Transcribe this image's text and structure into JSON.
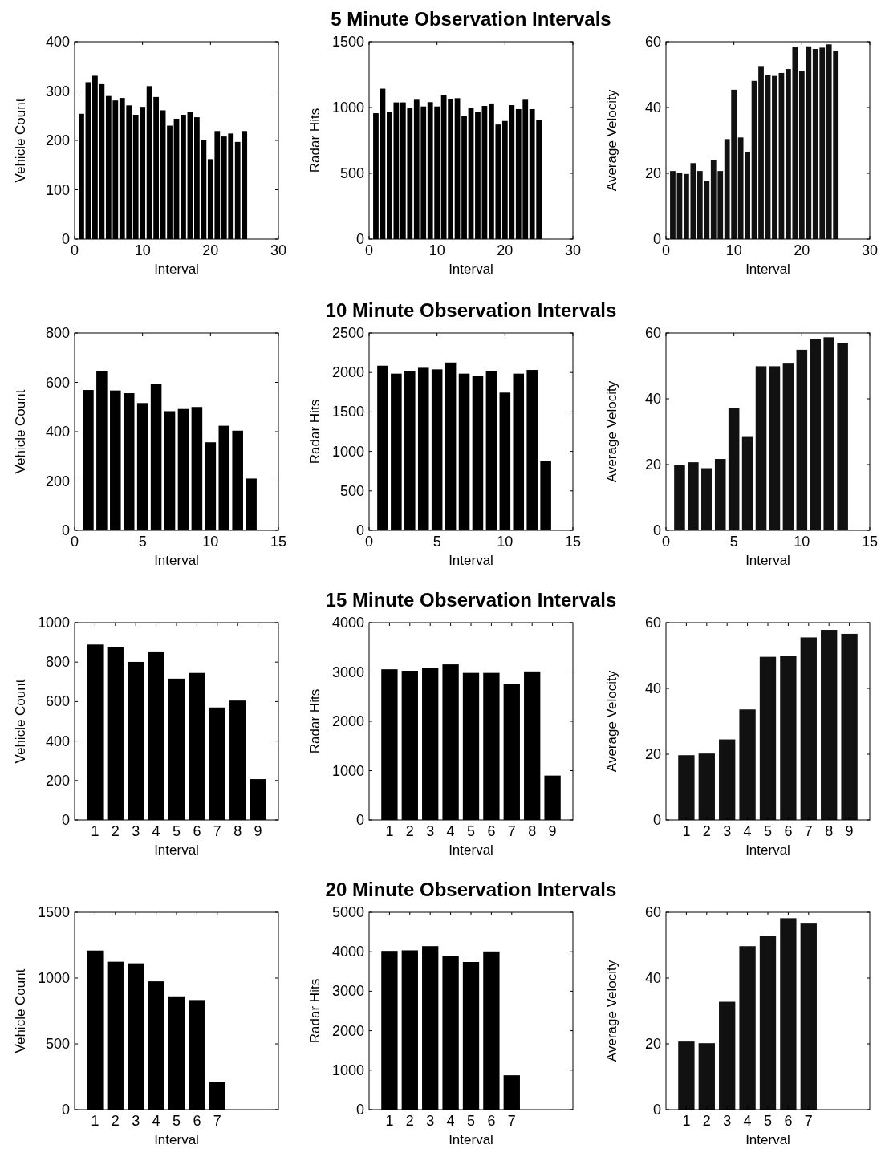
{
  "chart_data": [
    {
      "type": "bar",
      "xlabel": "Interval",
      "ylabel": "Vehicle Count",
      "x": [
        1,
        2,
        3,
        4,
        5,
        6,
        7,
        8,
        9,
        10,
        11,
        12,
        13,
        14,
        15,
        16,
        17,
        18,
        19,
        20,
        21,
        22,
        23,
        24,
        25
      ],
      "values": [
        254,
        318,
        331,
        314,
        290,
        281,
        286,
        271,
        252,
        268,
        310,
        288,
        261,
        230,
        244,
        252,
        257,
        247,
        200,
        162,
        219,
        208,
        214,
        197,
        219
      ],
      "color": "#000000",
      "xlim": [
        0,
        30
      ],
      "xticks": [
        0,
        10,
        20,
        30
      ],
      "ylim": [
        0,
        400
      ],
      "yticks": [
        0,
        100,
        200,
        300,
        400
      ]
    },
    {
      "type": "bar",
      "title": "5 Minute Observation Intervals",
      "xlabel": "Interval",
      "ylabel": "Radar Hits",
      "x": [
        1,
        2,
        3,
        4,
        5,
        6,
        7,
        8,
        9,
        10,
        11,
        12,
        13,
        14,
        15,
        16,
        17,
        18,
        19,
        20,
        21,
        22,
        23,
        24,
        25
      ],
      "values": [
        957,
        1143,
        967,
        1039,
        1039,
        1000,
        1059,
        1008,
        1041,
        1008,
        1096,
        1063,
        1071,
        937,
        1000,
        969,
        1012,
        1031,
        871,
        898,
        1018,
        988,
        1059,
        988,
        906
      ],
      "color": "#000000",
      "xlim": [
        0,
        30
      ],
      "xticks": [
        0,
        10,
        20,
        30
      ],
      "ylim": [
        0,
        1500
      ],
      "yticks": [
        0,
        500,
        1000,
        1500
      ]
    },
    {
      "type": "bar",
      "xlabel": "Interval",
      "ylabel": "Average Velocity",
      "x": [
        1,
        2,
        3,
        4,
        5,
        6,
        7,
        8,
        9,
        10,
        11,
        12,
        13,
        14,
        15,
        16,
        17,
        18,
        19,
        20,
        21,
        22,
        23,
        24,
        25
      ],
      "values": [
        20.7,
        20.2,
        19.8,
        23.1,
        20.7,
        17.7,
        24.1,
        20.7,
        30.4,
        45.4,
        30.9,
        26.6,
        48.1,
        52.6,
        50.0,
        49.6,
        50.5,
        51.7,
        58.5,
        51.2,
        58.6,
        57.8,
        58.2,
        59.2,
        57.1
      ],
      "color": "#111111",
      "xlim": [
        0,
        30
      ],
      "xticks": [
        0,
        10,
        20,
        30
      ],
      "ylim": [
        0,
        60
      ],
      "yticks": [
        0,
        20,
        40,
        60
      ]
    },
    {
      "type": "bar",
      "xlabel": "Interval",
      "ylabel": "Vehicle Count",
      "x": [
        1,
        2,
        3,
        4,
        5,
        6,
        7,
        8,
        9,
        10,
        11,
        12,
        13
      ],
      "values": [
        569,
        644,
        567,
        556,
        516,
        593,
        483,
        492,
        500,
        357,
        424,
        404,
        210
      ],
      "color": "#000000",
      "xlim": [
        0,
        15
      ],
      "xticks": [
        0,
        5,
        10,
        15
      ],
      "ylim": [
        0,
        800
      ],
      "yticks": [
        0,
        200,
        400,
        600,
        800
      ]
    },
    {
      "type": "bar",
      "title": "10 Minute Observation Intervals",
      "xlabel": "Interval",
      "ylabel": "Radar Hits",
      "x": [
        1,
        2,
        3,
        4,
        5,
        6,
        7,
        8,
        9,
        10,
        11,
        12,
        13
      ],
      "values": [
        2086,
        1985,
        2012,
        2059,
        2039,
        2126,
        1985,
        1952,
        2019,
        1745,
        1985,
        2032,
        876
      ],
      "color": "#000000",
      "xlim": [
        0,
        15
      ],
      "xticks": [
        0,
        5,
        10,
        15
      ],
      "ylim": [
        0,
        2500
      ],
      "yticks": [
        0,
        500,
        1000,
        1500,
        2000,
        2500
      ]
    },
    {
      "type": "bar",
      "xlabel": "Interval",
      "ylabel": "Average Velocity",
      "x": [
        1,
        2,
        3,
        4,
        5,
        6,
        7,
        8,
        9,
        10,
        11,
        12,
        13
      ],
      "values": [
        19.9,
        20.7,
        18.9,
        21.7,
        37.1,
        28.4,
        49.9,
        49.9,
        50.7,
        54.9,
        58.2,
        58.7,
        57.0
      ],
      "color": "#111111",
      "xlim": [
        0,
        15
      ],
      "xticks": [
        0,
        5,
        10,
        15
      ],
      "ylim": [
        0,
        60
      ],
      "yticks": [
        0,
        20,
        40,
        60
      ]
    },
    {
      "type": "bar",
      "xlabel": "Interval",
      "ylabel": "Vehicle Count",
      "x": [
        1,
        2,
        3,
        4,
        5,
        6,
        7,
        8,
        9
      ],
      "values": [
        889,
        878,
        801,
        854,
        716,
        745,
        570,
        605,
        207
      ],
      "color": "#000000",
      "xlim": [
        0,
        10
      ],
      "xticks": [
        1,
        2,
        3,
        4,
        5,
        6,
        7,
        8,
        9
      ],
      "ylim": [
        0,
        1000
      ],
      "yticks": [
        0,
        200,
        400,
        600,
        800,
        1000
      ]
    },
    {
      "type": "bar",
      "title": "15 Minute Observation Intervals",
      "xlabel": "Interval",
      "ylabel": "Radar Hits",
      "x": [
        1,
        2,
        3,
        4,
        5,
        6,
        7,
        8,
        9
      ],
      "values": [
        3054,
        3024,
        3088,
        3153,
        2981,
        2981,
        2756,
        3011,
        900
      ],
      "color": "#000000",
      "xlim": [
        0,
        10
      ],
      "xticks": [
        1,
        2,
        3,
        4,
        5,
        6,
        7,
        8,
        9
      ],
      "ylim": [
        0,
        4000
      ],
      "yticks": [
        0,
        1000,
        2000,
        3000,
        4000
      ]
    },
    {
      "type": "bar",
      "xlabel": "Interval",
      "ylabel": "Average Velocity",
      "x": [
        1,
        2,
        3,
        4,
        5,
        6,
        7,
        8,
        9
      ],
      "values": [
        19.7,
        20.2,
        24.5,
        33.6,
        49.6,
        49.9,
        55.5,
        57.8,
        56.6
      ],
      "color": "#111111",
      "xlim": [
        0,
        10
      ],
      "xticks": [
        1,
        2,
        3,
        4,
        5,
        6,
        7,
        8,
        9
      ],
      "ylim": [
        0,
        60
      ],
      "yticks": [
        0,
        20,
        40,
        60
      ]
    },
    {
      "type": "bar",
      "xlabel": "Interval",
      "ylabel": "Vehicle Count",
      "x": [
        1,
        2,
        3,
        4,
        5,
        6,
        7
      ],
      "values": [
        1209,
        1124,
        1112,
        975,
        861,
        833,
        210
      ],
      "color": "#000000",
      "xlim": [
        0,
        10
      ],
      "xticks": [
        1,
        2,
        3,
        4,
        5,
        6,
        7
      ],
      "ylim": [
        0,
        1500
      ],
      "yticks": [
        0,
        500,
        1000,
        1500
      ]
    },
    {
      "type": "bar",
      "title": "20 Minute Observation Intervals",
      "xlabel": "Interval",
      "ylabel": "Radar Hits",
      "x": [
        1,
        2,
        3,
        4,
        5,
        6,
        7
      ],
      "values": [
        4021,
        4035,
        4142,
        3901,
        3740,
        4008,
        871
      ],
      "color": "#000000",
      "xlim": [
        0,
        10
      ],
      "xticks": [
        1,
        2,
        3,
        4,
        5,
        6,
        7
      ],
      "ylim": [
        0,
        5000
      ],
      "yticks": [
        0,
        1000,
        2000,
        3000,
        4000,
        5000
      ]
    },
    {
      "type": "bar",
      "xlabel": "Interval",
      "ylabel": "Average Velocity",
      "x": [
        1,
        2,
        3,
        4,
        5,
        6,
        7
      ],
      "values": [
        20.7,
        20.2,
        32.8,
        49.7,
        52.7,
        58.2,
        56.8
      ],
      "color": "#111111",
      "xlim": [
        0,
        10
      ],
      "xticks": [
        1,
        2,
        3,
        4,
        5,
        6,
        7
      ],
      "ylim": [
        0,
        60
      ],
      "yticks": [
        0,
        20,
        40,
        60
      ]
    }
  ]
}
